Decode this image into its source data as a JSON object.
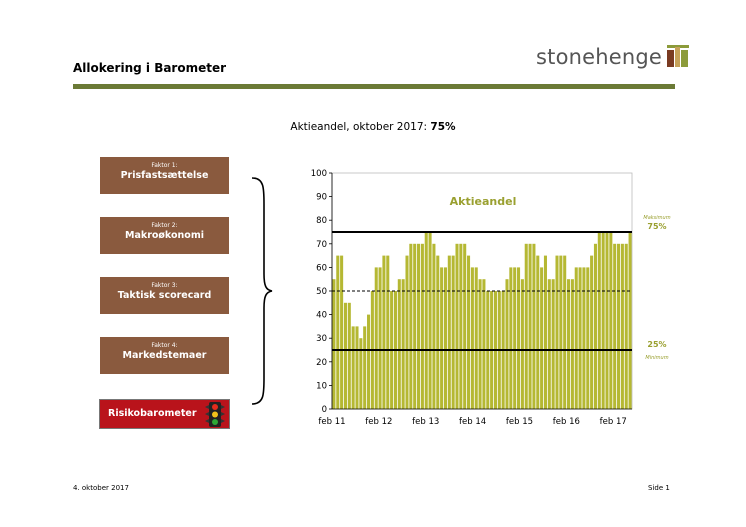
{
  "slide": {
    "title": "Allokering i Barometer",
    "logo_text": "stonehenge",
    "subtitle_prefix": "Aktieandel, oktober 2017: ",
    "subtitle_value": "75%",
    "footer_date": "4. oktober 2017",
    "footer_page": "Side 1"
  },
  "factors": [
    {
      "small": "Faktor 1:",
      "big": "Prisfastsættelse"
    },
    {
      "small": "Faktor 2:",
      "big": "Makroøkonomi"
    },
    {
      "small": "Faktor 3:",
      "big": "Taktisk scorecard"
    },
    {
      "small": "Faktor 4:",
      "big": "Markedstemaer"
    }
  ],
  "risk_label": "Risikobarometer",
  "colors": {
    "bar": "#b5b833",
    "factor_bg": "#8a5a3e",
    "risk_bg": "#b9131b",
    "rule": "#6b7a36",
    "label_green": "#9aa030"
  },
  "chart_data": {
    "type": "bar",
    "ylim": [
      0,
      100
    ],
    "yticks": [
      0,
      10,
      20,
      30,
      40,
      50,
      60,
      70,
      80,
      90,
      100
    ],
    "xtick_labels": [
      "feb 11",
      "feb 12",
      "feb 13",
      "feb 14",
      "feb 15",
      "feb 16",
      "feb 17"
    ],
    "series_label": "Aktieandel",
    "max_line": {
      "value": 75,
      "label": "75%",
      "note": "Maksimum"
    },
    "min_line": {
      "value": 25,
      "label": "25%",
      "note": "Minimum"
    },
    "neutral_line": 50,
    "values": [
      55,
      65,
      65,
      45,
      45,
      35,
      35,
      30,
      35,
      40,
      50,
      60,
      60,
      65,
      65,
      50,
      50,
      55,
      55,
      65,
      70,
      70,
      70,
      70,
      75,
      75,
      70,
      65,
      60,
      60,
      65,
      65,
      70,
      70,
      70,
      65,
      60,
      60,
      55,
      55,
      50,
      50,
      50,
      50,
      50,
      55,
      60,
      60,
      60,
      55,
      70,
      70,
      70,
      65,
      60,
      65,
      55,
      55,
      65,
      65,
      65,
      55,
      55,
      60,
      60,
      60,
      60,
      65,
      70,
      75,
      75,
      75,
      75,
      70,
      70,
      70,
      70,
      75
    ]
  }
}
